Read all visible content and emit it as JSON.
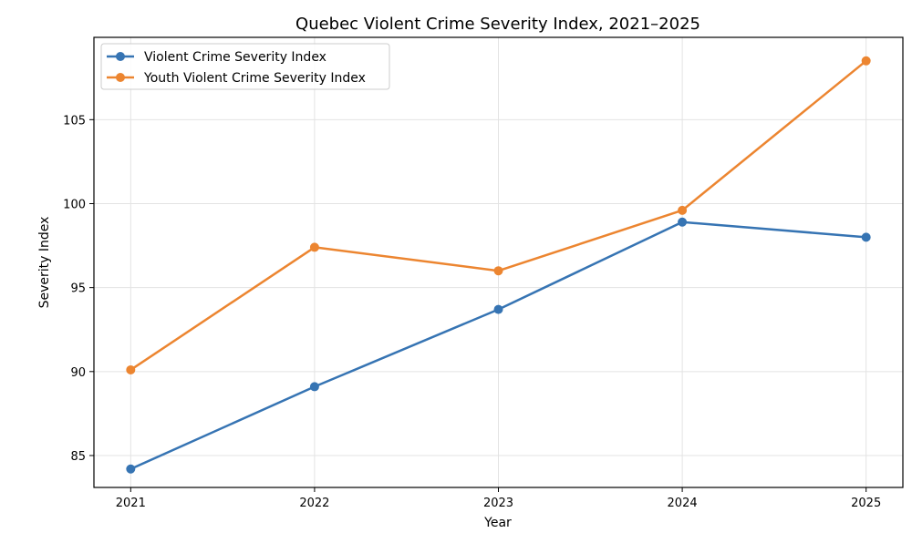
{
  "chart_data": {
    "type": "line",
    "title": "Quebec Violent Crime Severity Index, 2021–2025",
    "xlabel": "Year",
    "ylabel": "Severity Index",
    "x": [
      2021,
      2022,
      2023,
      2024,
      2025
    ],
    "x_tick_labels": [
      "2021",
      "2022",
      "2023",
      "2024",
      "2025"
    ],
    "y_ticks": [
      85,
      90,
      95,
      100,
      105
    ],
    "y_tick_labels": [
      "85",
      "90",
      "95",
      "100",
      "105"
    ],
    "xlim": [
      2020.8,
      2025.2
    ],
    "ylim": [
      83.1,
      109.9
    ],
    "grid": true,
    "legend_position": "upper-left",
    "series": [
      {
        "name": "Violent Crime Severity Index",
        "color": "#3674b3",
        "values": [
          84.2,
          89.1,
          93.7,
          98.9,
          98.0
        ]
      },
      {
        "name": "Youth Violent Crime Severity Index",
        "color": "#ec8530",
        "values": [
          90.1,
          97.4,
          96.0,
          99.6,
          108.5
        ]
      }
    ]
  }
}
